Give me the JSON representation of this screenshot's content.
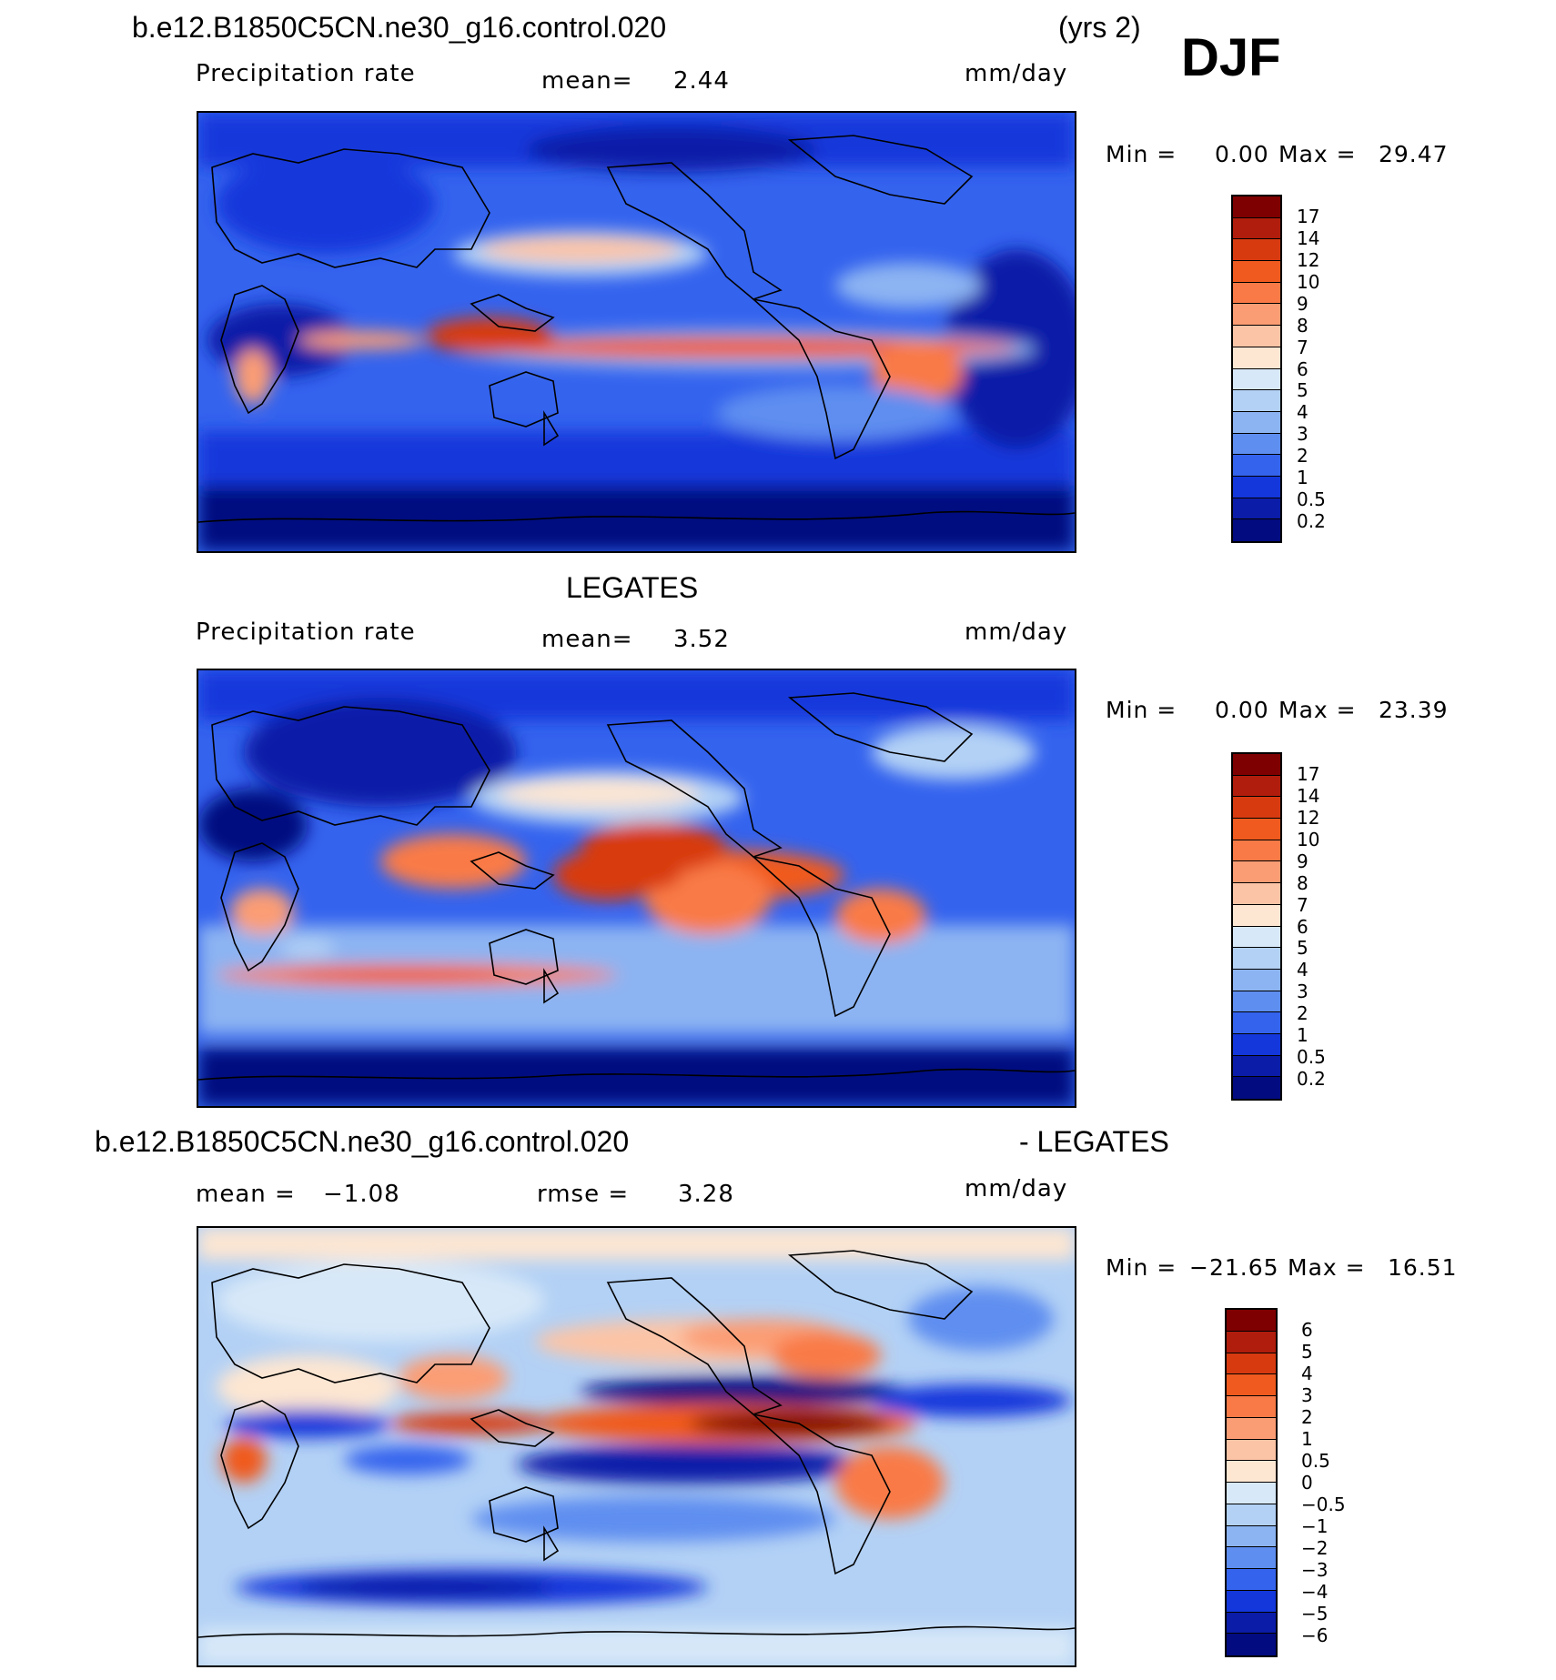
{
  "header": {
    "case_title": "b.e12.B1850C5CN.ne30_g16.control.020",
    "years": "(yrs 2)",
    "season": "DJF"
  },
  "panel1": {
    "variable": "Precipitation rate",
    "mean_label": "mean=",
    "mean_value": "2.44",
    "units": "mm/day",
    "min_label": "Min =",
    "min_value": "0.00",
    "max_label": "Max =",
    "max_value": "29.47",
    "levels": [
      "17",
      "14",
      "12",
      "10",
      "9",
      "8",
      "7",
      "6",
      "5",
      "4",
      "3",
      "2",
      "1",
      "0.5",
      "0.2"
    ]
  },
  "panel2": {
    "obs_title": "LEGATES",
    "variable": "Precipitation rate",
    "mean_label": "mean=",
    "mean_value": "3.52",
    "units": "mm/day",
    "min_label": "Min =",
    "min_value": "0.00",
    "max_label": "Max =",
    "max_value": "23.39",
    "levels": [
      "17",
      "14",
      "12",
      "10",
      "9",
      "8",
      "7",
      "6",
      "5",
      "4",
      "3",
      "2",
      "1",
      "0.5",
      "0.2"
    ]
  },
  "panel3": {
    "case_title": "b.e12.B1850C5CN.ne30_g16.control.020",
    "minus_title": "- LEGATES",
    "mean_label": "mean =",
    "mean_value": "−1.08",
    "rmse_label": "rmse =",
    "rmse_value": "3.28",
    "units": "mm/day",
    "min_label": "Min =",
    "min_value": "−21.65",
    "max_label": "Max =",
    "max_value": "16.51",
    "levels": [
      "6",
      "5",
      "4",
      "3",
      "2",
      "1",
      "0.5",
      "0",
      "−0.5",
      "−1",
      "−2",
      "−3",
      "−4",
      "−5",
      "−6"
    ]
  },
  "colors": {
    "abs_scale": [
      "#7f0000",
      "#b01d0c",
      "#d83a10",
      "#f05a1e",
      "#f97a46",
      "#fb9d74",
      "#fcc4a6",
      "#fde6d2",
      "#d7e8f8",
      "#b3d1f5",
      "#8cb4f2",
      "#5e8ef0",
      "#3463ee",
      "#1337db",
      "#0a1ca8",
      "#030b80"
    ],
    "diff_scale": [
      "#7f0000",
      "#b01d0c",
      "#d83a10",
      "#f05a1e",
      "#f97a46",
      "#fb9d74",
      "#fcc4a6",
      "#fde6d2",
      "#d7e8f8",
      "#b3d1f5",
      "#8cb4f2",
      "#5e8ef0",
      "#3463ee",
      "#1337db",
      "#0a1ca8",
      "#030b80"
    ]
  }
}
